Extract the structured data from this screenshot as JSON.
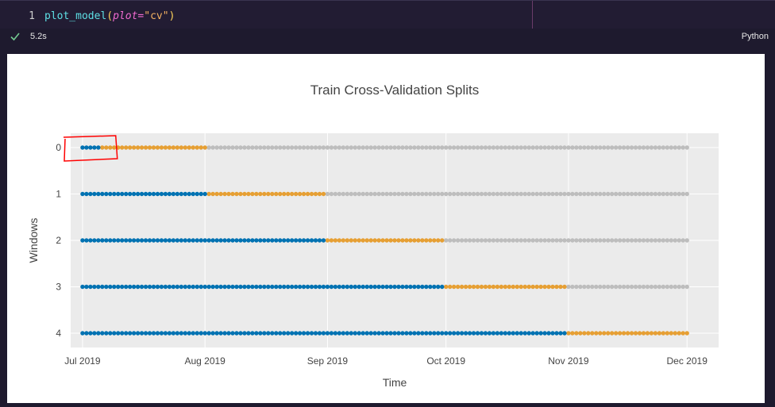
{
  "cell": {
    "line_number": "1",
    "code": {
      "function": "plot_model",
      "open_paren": "(",
      "param": "plot",
      "equals": "=",
      "value": "\"cv\"",
      "close_paren": ")"
    },
    "exec_time": "5.2s",
    "language": "Python",
    "status_icon": "check-icon"
  },
  "chart_data": {
    "type": "scatter",
    "title": "Train Cross-Validation Splits",
    "xlabel": "Time",
    "ylabel": "Windows",
    "x_ticks": [
      "Jul 2019",
      "Aug 2019",
      "Sep 2019",
      "Oct 2019",
      "Nov 2019",
      "Dec 2019"
    ],
    "y_ticks": [
      "0",
      "1",
      "2",
      "3",
      "4"
    ],
    "xlim": [
      "2019-06-28",
      "2019-12-09"
    ],
    "y_reversed": true,
    "grid": true,
    "legend": "none",
    "colors": {
      "train": "#0072b2",
      "test": "#e69f33",
      "unused": "#bdbdbd",
      "annotation": "#ff0000"
    },
    "series": [
      {
        "window": 0,
        "train": [
          "2019-07-01",
          "2019-07-05"
        ],
        "test": [
          "2019-07-06",
          "2019-08-01"
        ],
        "unused": [
          "2019-08-02",
          "2019-12-01"
        ]
      },
      {
        "window": 1,
        "train": [
          "2019-07-01",
          "2019-08-01"
        ],
        "test": [
          "2019-08-02",
          "2019-08-31"
        ],
        "unused": [
          "2019-09-01",
          "2019-12-01"
        ]
      },
      {
        "window": 2,
        "train": [
          "2019-07-01",
          "2019-08-31"
        ],
        "test": [
          "2019-09-01",
          "2019-09-30"
        ],
        "unused": [
          "2019-10-01",
          "2019-12-01"
        ]
      },
      {
        "window": 3,
        "train": [
          "2019-07-01",
          "2019-09-30"
        ],
        "test": [
          "2019-10-01",
          "2019-10-31"
        ],
        "unused": [
          "2019-11-01",
          "2019-12-01"
        ]
      },
      {
        "window": 4,
        "train": [
          "2019-07-01",
          "2019-10-31"
        ],
        "test": [
          "2019-11-01",
          "2019-12-01"
        ],
        "unused": []
      }
    ],
    "annotation": {
      "shape": "freehand-rectangle",
      "around_window": 0,
      "range": [
        "2019-06-29",
        "2019-07-09"
      ]
    }
  }
}
